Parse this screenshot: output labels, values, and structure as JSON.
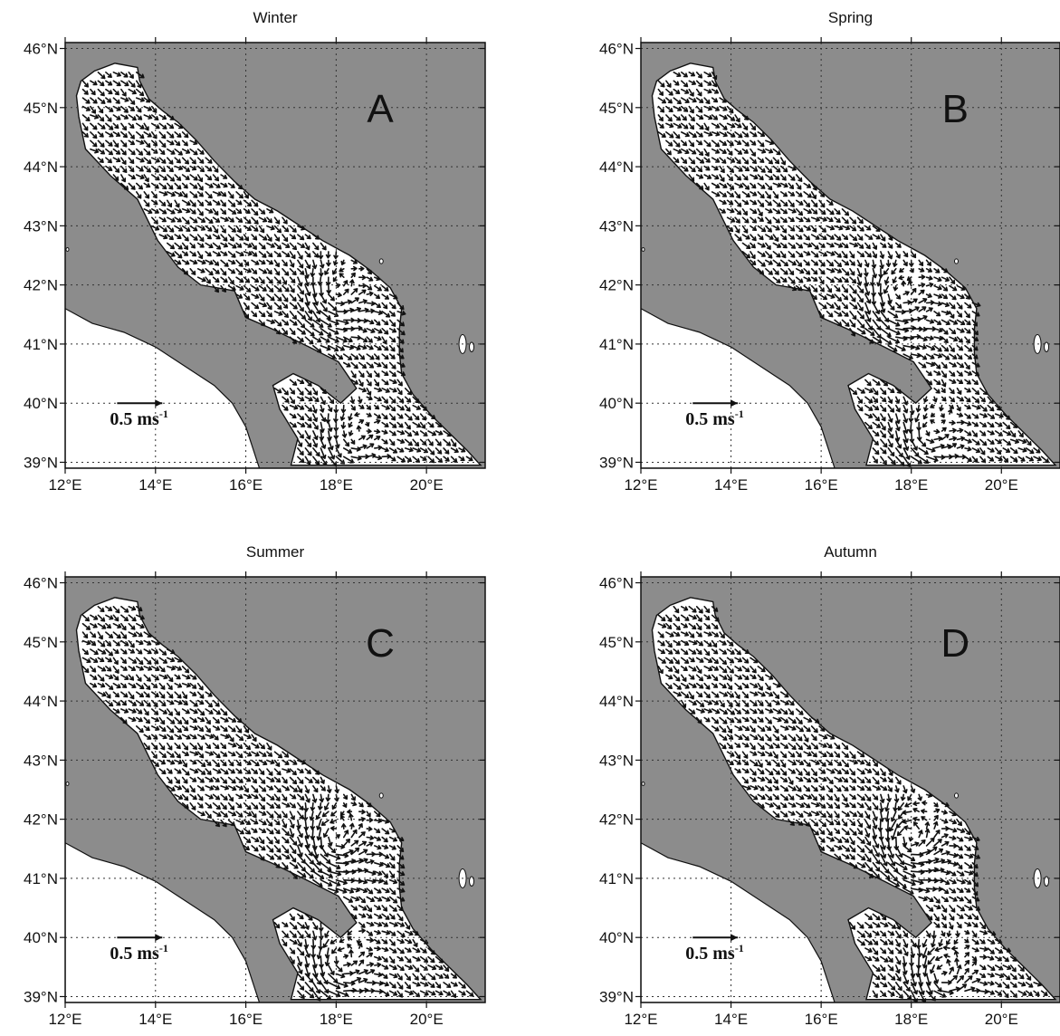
{
  "figure": {
    "x_tick_labels": [
      "12°E",
      "14°E",
      "16°E",
      "18°E",
      "20°E"
    ],
    "y_tick_labels": [
      "39°N",
      "40°N",
      "41°N",
      "42°N",
      "43°N",
      "44°N",
      "45°N",
      "46°N"
    ],
    "x_ticks": [
      12,
      14,
      16,
      18,
      20
    ],
    "y_ticks": [
      39,
      40,
      41,
      42,
      43,
      44,
      45,
      46
    ],
    "lon_range": [
      12,
      21.3
    ],
    "lat_range": [
      38.9,
      46.1
    ],
    "scale_label": "0.5 ms",
    "scale_exponent": "-1",
    "colors": {
      "sea_ocean_outside": "#8c8c8c",
      "adriatic_water": "#ffffff",
      "land_white": "#ffffff",
      "vectors": "#111111",
      "grid": "#333333"
    },
    "panels": [
      {
        "title": "Winter",
        "letter": "A",
        "gyre": [
          17.9,
          41.8
        ],
        "gyre2": [
          18.2,
          39.3
        ],
        "strength": 0.9
      },
      {
        "title": "Spring",
        "letter": "B",
        "gyre": [
          17.6,
          41.7
        ],
        "gyre2": [
          18.3,
          39.4
        ],
        "strength": 1.0
      },
      {
        "title": "Summer",
        "letter": "C",
        "gyre": [
          17.9,
          41.6
        ],
        "gyre2": [
          18.0,
          39.5
        ],
        "strength": 1.2
      },
      {
        "title": "Autumn",
        "letter": "D",
        "gyre": [
          17.9,
          41.6
        ],
        "gyre2": [
          18.6,
          39.3
        ],
        "strength": 1.5
      }
    ]
  }
}
